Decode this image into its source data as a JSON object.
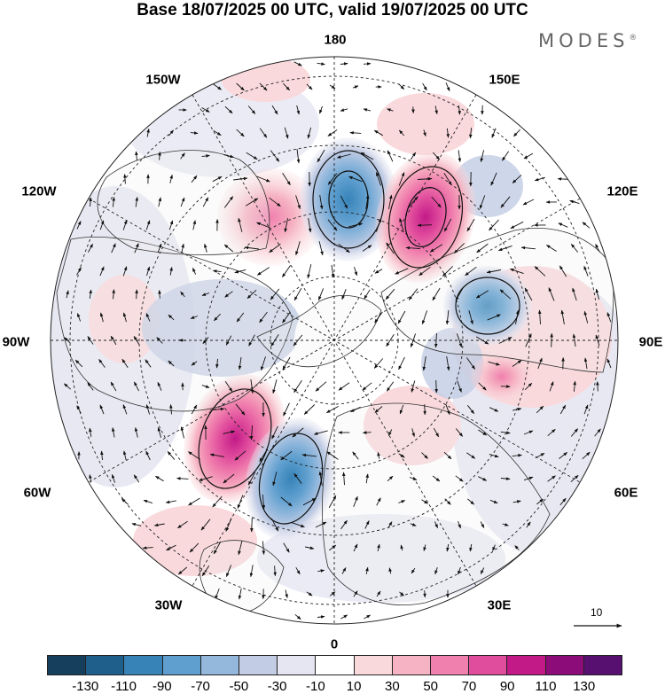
{
  "title": "Base 18/07/2025 00 UTC, valid 19/07/2025 00 UTC",
  "brand": "MODES",
  "brand_mark": "®",
  "longitude_labels": {
    "lon_180": "180",
    "lon_150e": "150E",
    "lon_120e": "120E",
    "lon_90e": "90E",
    "lon_60e": "60E",
    "lon_30e": "30E",
    "lon_0": "0",
    "lon_30w": "30W",
    "lon_60w": "60W",
    "lon_90w": "90W",
    "lon_120w": "120W",
    "lon_150w": "150W"
  },
  "reference_vector_label": "10",
  "colorbar": {
    "colors": [
      "#163f5e",
      "#1e5f8c",
      "#3783b8",
      "#5f9fcf",
      "#93b8dc",
      "#c2cce4",
      "#e6e6f2",
      "#ffffff",
      "#f9d9dc",
      "#f6b3c3",
      "#f080ae",
      "#e14d9d",
      "#c21a87",
      "#8c0d7a",
      "#581070"
    ],
    "tick_labels": [
      "-130",
      "-110",
      "-90",
      "-70",
      "-50",
      "-30",
      "-10",
      "10",
      "30",
      "50",
      "70",
      "90",
      "110",
      "130"
    ]
  },
  "map_colors": {
    "land_fill": "#f0f0f0",
    "ocean_bg": "#ffffff",
    "coast": "#333333",
    "grid": "#222222",
    "vector": "#111111"
  }
}
